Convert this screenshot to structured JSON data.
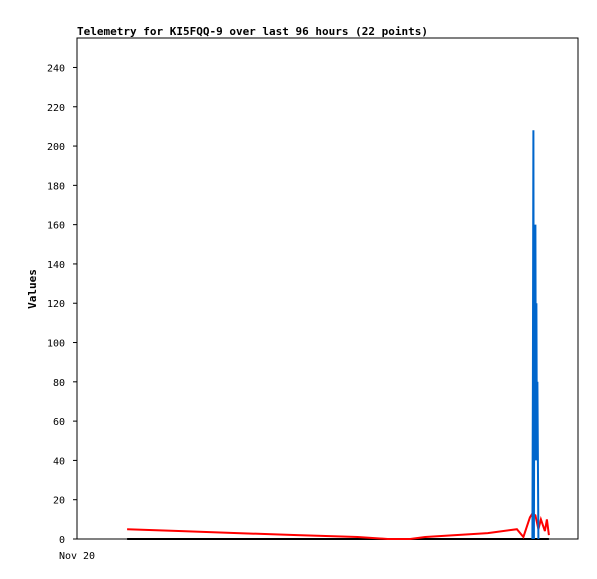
{
  "chart_data": {
    "type": "line",
    "title": "Telemetry for KI5FQQ-9 over last 96 hours (22 points)",
    "xlabel": "",
    "ylabel": "Values",
    "ylim": [
      0,
      255
    ],
    "yticks": [
      0,
      20,
      40,
      60,
      80,
      100,
      120,
      140,
      160,
      180,
      200,
      220,
      240
    ],
    "xlim": [
      0,
      100
    ],
    "xtick_labels": [
      "Nov 20"
    ],
    "grid": false,
    "legend": "none",
    "series": [
      {
        "color": "#000000",
        "x": [
          10,
          94.2
        ],
        "y": [
          0,
          0
        ]
      },
      {
        "color": "#ff0000",
        "x": [
          10,
          21,
          32,
          44,
          56,
          62,
          66.5,
          69.5,
          82,
          87.8,
          89.1,
          90.4,
          90.9,
          91.5,
          92.1,
          92.6,
          93.4,
          93.8,
          94.2
        ],
        "y": [
          5,
          4,
          3,
          2,
          1,
          0,
          0,
          1,
          3,
          5,
          1,
          11,
          13,
          12,
          5,
          10,
          4,
          10,
          2
        ]
      },
      {
        "color": "#0066cc",
        "x": [
          90.9,
          91.0,
          91.1,
          91.2,
          91.3,
          91.4,
          91.5,
          91.6,
          91.7,
          91.8,
          91.9,
          92.0,
          92.1
        ],
        "y": [
          0,
          80,
          208,
          0,
          104,
          40,
          160,
          40,
          120,
          40,
          80,
          40,
          0
        ]
      }
    ]
  }
}
